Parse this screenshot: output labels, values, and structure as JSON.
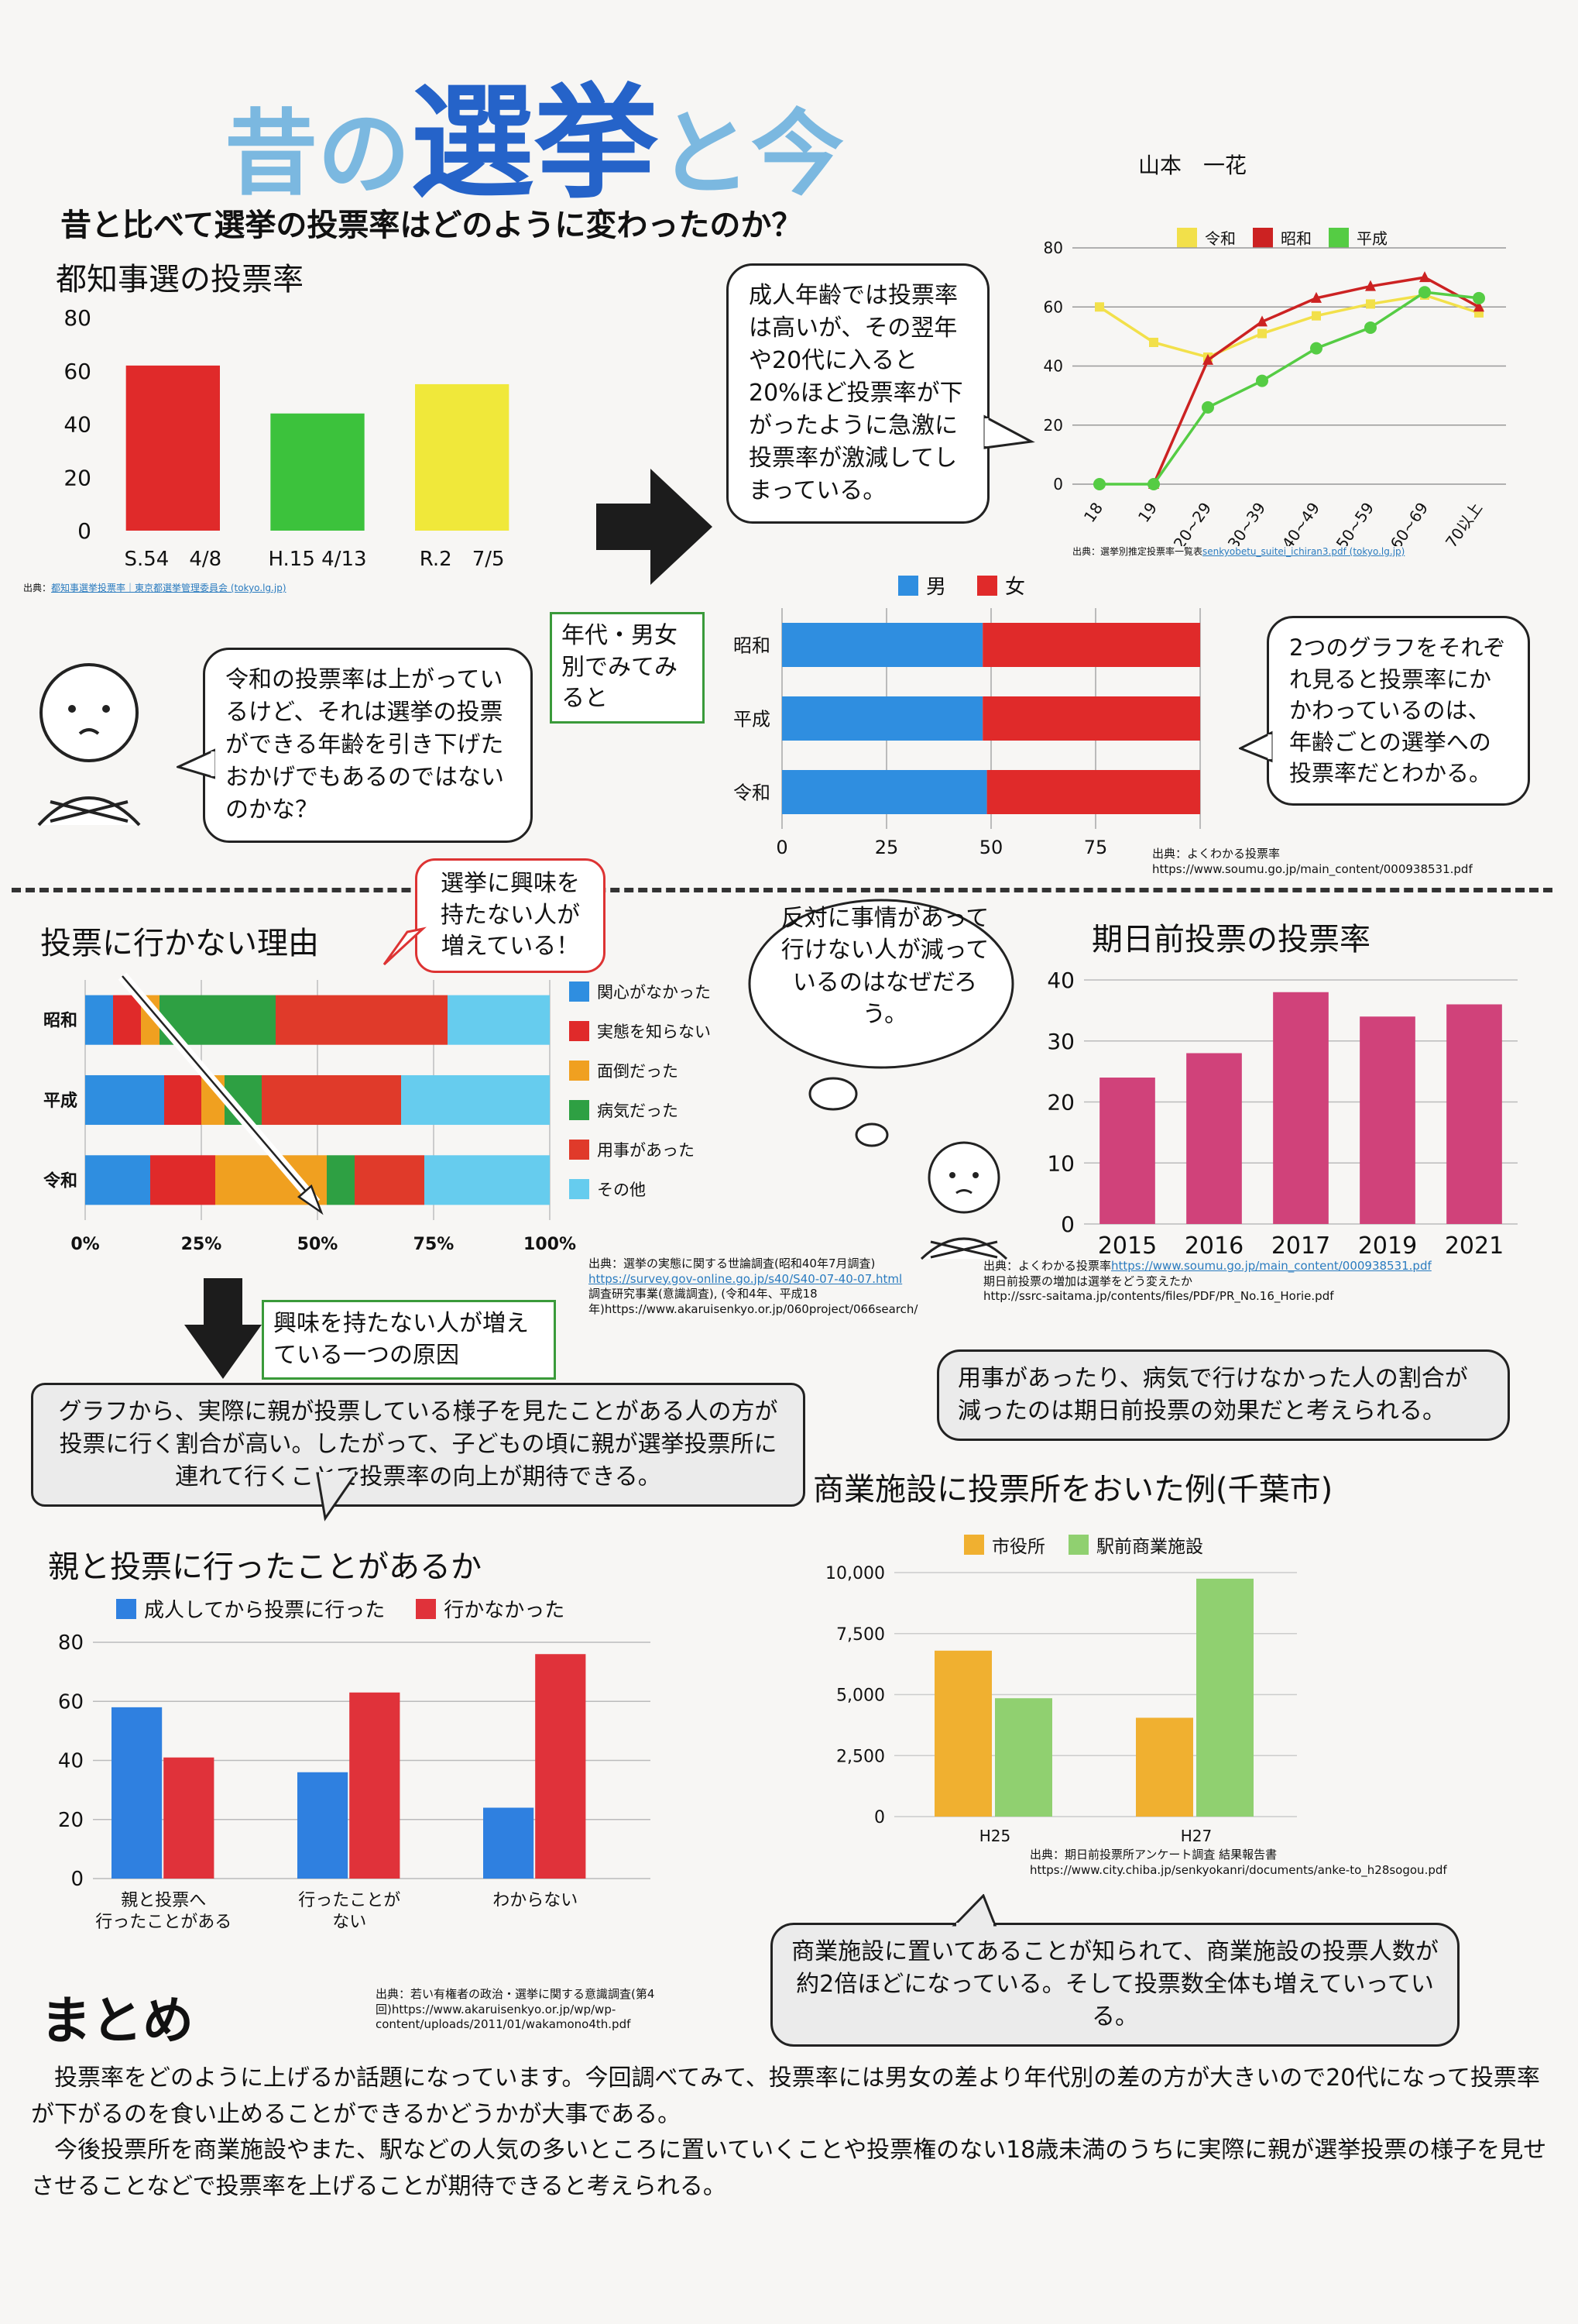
{
  "header": {
    "title_part1": "昔の",
    "title_part2": "選挙",
    "title_part3": "と今",
    "author": "山本　一花",
    "question": "昔と比べて選挙の投票率はどのように変わったのか？"
  },
  "section_tokyo": {
    "title": "都知事選の投票率",
    "source": "出典：",
    "source_link": "都知事選挙投票率｜東京都選挙管理委員会 (tokyo.lg.jp)"
  },
  "bubble_tokyo": "令和の投票率は上がっているけど、それは選挙の投票ができる年齢を引き下げたおかげでもあるのではないのかな？",
  "box_age_gender": "年代・男女別でみてみると",
  "bubble_age": "成人年齢では投票率は高いが、その翌年や20代に入ると20%ほど投票率が下がったように急激に投票率が激減してしまっている。",
  "section_age": {
    "source_label": "出典：選挙別推定投票率一覧表",
    "source_link": "senkyobetu_suitei_ichiran3.pdf (tokyo.lg.jp)"
  },
  "section_gender": {
    "source_label": "出典：よくわかる投票率",
    "source_url": "https://www.soumu.go.jp/main_content/000938531.pdf"
  },
  "bubble_two_graphs": "2つのグラフをそれぞれ見ると投票率にかかわっているのは、年齢ごとの選挙への投票率だとわかる。",
  "section_reasons": {
    "title": "投票に行かない理由",
    "source": "出典：選挙の実態に関する世論調査(昭和40年7月調査)",
    "source_link": "https://survey.gov-online.go.jp/s40/S40-07-40-07.html",
    "source2": "調査研究事業(意識調査), (令和4年、平成18年)https://www.akaruisenkyo.or.jp/060project/066search/"
  },
  "box_interest": "選挙に興味を持たない人が増えている！",
  "cloud_thought": "反対に事情があって行けない人が減っているのはなぜだろう。",
  "box_interest_reason": "興味を持たない人が増えている一つの原因",
  "bubble_parents_note": "グラフから、実際に親が投票している様子を見たことがある人の方が投票に行く割合が高い。したがって、子どもの頃に親が選挙投票所に連れて行くことで投票率の向上が期待できる。",
  "section_early": {
    "title": "期日前投票の投票率",
    "source1_label": "出典：よくわかる投票率",
    "source1_link": "https://www.soumu.go.jp/main_content/000938531.pdf",
    "source2": "期日前投票の増加は選挙をどう変えたか",
    "source3": "http://ssrc-saitama.jp/contents/files/PDF/PR_No.16_Horie.pdf"
  },
  "bubble_early": "用事があったり、病気で行けなかった人の割合が減ったのは期日前投票の効果だと考えられる。",
  "section_parents": {
    "title": "親と投票に行ったことがあるか",
    "source": "出典：若い有権者の政治・選挙に関する意識調査(第4回)https://www.akaruisenkyo.or.jp/wp/wp-content/uploads/2011/01/wakamono4th.pdf"
  },
  "section_commercial": {
    "title": "商業施設に投票所をおいた例(千葉市)",
    "source": "出典：期日前投票所アンケート調査 結果報告書",
    "source_url": "https://www.city.chiba.jp/senkyokanri/documents/anke-to_h28sogou.pdf"
  },
  "bubble_commercial": "商業施設に置いてあることが知られて、商業施設の投票人数が約2倍ほどになっている。そして投票数全体も増えていっている。",
  "summary": {
    "heading": "まとめ",
    "para1": "投票率をどのように上げるか話題になっています。今回調べてみて、投票率には男女の差より年代別の差の方が大きいので20代になって投票率が下がるのを食い止めることができるかどうかが大事である。",
    "para2": "今後投票所を商業施設やまた、駅などの人気の多いところに置いていくことや投票権のない18歳未満のうちに実際に親が選挙投票の様子を見せさせることなどで投票率を上げることが期待できると考えられる。"
  },
  "chart_data": [
    {
      "id": "tokyo",
      "type": "bar",
      "categories": [
        "S.54　4/8",
        "H.15 4/13",
        "R.2　7/5"
      ],
      "values": [
        62,
        44,
        55
      ],
      "colors": [
        "#e02a2a",
        "#3cc23c",
        "#f0e83a"
      ],
      "yticks": [
        0,
        20,
        40,
        60,
        80
      ],
      "ylim": [
        0,
        80
      ]
    },
    {
      "id": "age",
      "type": "line",
      "categories": [
        "18",
        "19",
        "20~29",
        "30~39",
        "40~49",
        "50~59",
        "60~69",
        "70以上"
      ],
      "series": [
        {
          "name": "令和",
          "color": "#f2e04a",
          "marker": "square",
          "values": [
            60,
            48,
            43,
            51,
            57,
            61,
            64,
            58
          ]
        },
        {
          "name": "昭和",
          "color": "#cc2222",
          "marker": "triangle",
          "values": [
            null,
            0,
            42,
            55,
            63,
            67,
            70,
            60
          ]
        },
        {
          "name": "平成",
          "color": "#55cc44",
          "marker": "circle",
          "values": [
            0,
            0,
            26,
            35,
            46,
            53,
            65,
            63
          ]
        }
      ],
      "yticks": [
        0,
        20,
        40,
        60,
        80
      ],
      "ylim": [
        0,
        80
      ]
    },
    {
      "id": "gender",
      "type": "bar-stacked-horizontal",
      "categories": [
        "昭和",
        "平成",
        "令和"
      ],
      "series": [
        {
          "name": "男",
          "color": "#2f8ee0",
          "values": [
            48,
            48,
            49
          ]
        },
        {
          "name": "女",
          "color": "#e02a2a",
          "values": [
            52,
            52,
            51
          ]
        }
      ],
      "xticks": [
        0,
        25,
        50,
        75
      ],
      "xlim": [
        0,
        100
      ]
    },
    {
      "id": "reasons",
      "type": "bar-stacked-horizontal",
      "categories": [
        "昭和",
        "平成",
        "令和"
      ],
      "series": [
        {
          "name": "関心がなかった",
          "color": "#2f8ee0",
          "values": [
            6,
            17,
            14
          ]
        },
        {
          "name": "実態を知らない",
          "color": "#e02a2a",
          "values": [
            6,
            8,
            14
          ]
        },
        {
          "name": "面倒だった",
          "color": "#f0a020",
          "values": [
            4,
            5,
            24
          ]
        },
        {
          "name": "病気だった",
          "color": "#2ea043",
          "values": [
            25,
            8,
            6
          ]
        },
        {
          "name": "用事があった",
          "color": "#e03a2a",
          "values": [
            37,
            30,
            15
          ]
        },
        {
          "name": "その他",
          "color": "#66ccee",
          "values": [
            22,
            32,
            27
          ]
        }
      ],
      "xticks": [
        "0%",
        "25%",
        "50%",
        "75%",
        "100%"
      ],
      "xlim": [
        0,
        100
      ]
    },
    {
      "id": "early",
      "type": "bar",
      "categories": [
        "2015",
        "2016",
        "2017",
        "2019",
        "2021"
      ],
      "values": [
        24,
        28,
        38,
        34,
        36
      ],
      "color": "#d0427a",
      "yticks": [
        0,
        10,
        20,
        30,
        40
      ],
      "ylim": [
        0,
        40
      ]
    },
    {
      "id": "parents",
      "type": "bar",
      "categories": [
        "親と投票へ\n行ったことがある",
        "行ったことが\nない",
        "わからない"
      ],
      "series": [
        {
          "name": "成人してから投票に行った",
          "color": "#2f80e0",
          "values": [
            58,
            36,
            24
          ]
        },
        {
          "name": "行かなかった",
          "color": "#e0323a",
          "values": [
            41,
            63,
            76
          ]
        }
      ],
      "yticks": [
        0,
        20,
        40,
        60,
        80
      ],
      "ylim": [
        0,
        80
      ]
    },
    {
      "id": "commercial",
      "type": "bar",
      "categories": [
        "H25",
        "H27"
      ],
      "series": [
        {
          "name": "市役所",
          "color": "#f0b030",
          "values": [
            6800,
            4050
          ]
        },
        {
          "name": "駅前商業施設",
          "color": "#90d070",
          "values": [
            4850,
            9750
          ]
        }
      ],
      "yticks": [
        "0",
        "2,500",
        "5,000",
        "7,500",
        "10,000"
      ],
      "ylim": [
        0,
        10000
      ]
    }
  ]
}
